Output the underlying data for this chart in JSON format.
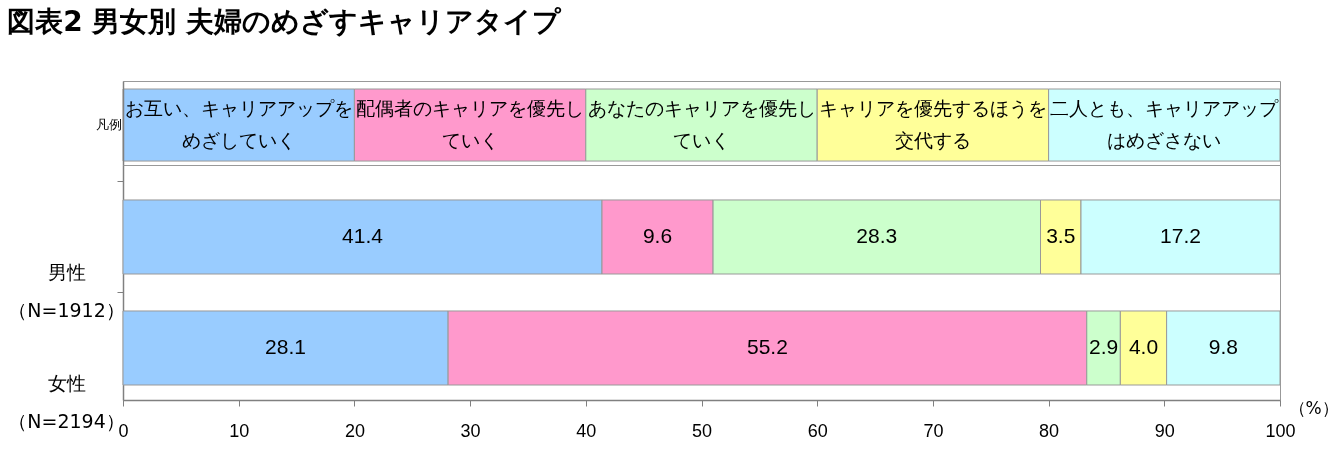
{
  "chart_data": {
    "type": "bar",
    "orientation": "horizontal",
    "stacked": true,
    "title": "図表2 男女別 夫婦のめざすキャリアタイプ",
    "legend_title": "凡例",
    "legend": "top",
    "xlabel": "（%）",
    "categories": [
      "男性（N=1912）",
      "女性（N=2194）"
    ],
    "series": [
      {
        "name": "お互い、キャリアアップをめざしていく",
        "color": "#99ccff",
        "values": [
          41.4,
          28.1
        ],
        "value_labels": [
          "41.4",
          "28.1"
        ]
      },
      {
        "name": "配偶者のキャリアを優先していく",
        "color": "#ff99cc",
        "values": [
          9.6,
          55.2
        ],
        "value_labels": [
          "9.6",
          "55.2"
        ]
      },
      {
        "name": "あなたのキャリアを優先していく",
        "color": "#ccffcc",
        "values": [
          28.3,
          2.9
        ],
        "value_labels": [
          "28.3",
          "2.9"
        ]
      },
      {
        "name": "キャリアを優先するほうを交代する",
        "color": "#ffff99",
        "values": [
          3.5,
          4.0
        ],
        "value_labels": [
          "3.5",
          "4.0"
        ]
      },
      {
        "name": "二人とも、キャリアアップはめざさない",
        "color": "#ccffff",
        "values": [
          17.2,
          9.8
        ],
        "value_labels": [
          "17.2",
          "9.8"
        ]
      }
    ],
    "xlim": [
      0,
      100
    ],
    "xticks": [
      0,
      10,
      20,
      30,
      40,
      50,
      60,
      70,
      80,
      90,
      100
    ]
  }
}
